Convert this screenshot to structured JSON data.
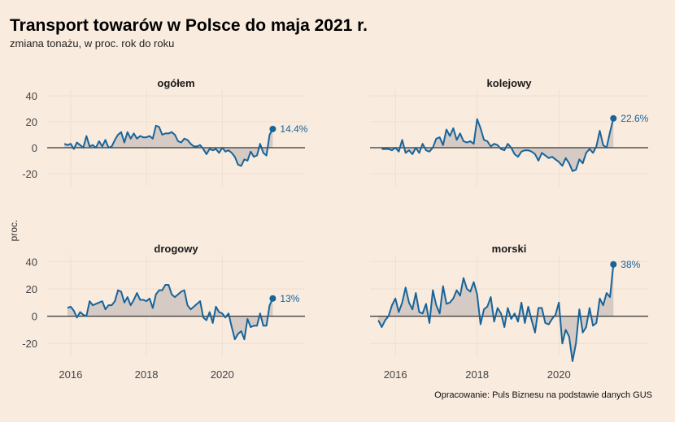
{
  "title": "Transport towarów w Polsce do maja 2021 r.",
  "subtitle": "zmiana tonażu, w proc. rok do roku",
  "caption": "Opracowanie: Puls Biznesu na podstawie danych GUS",
  "colors": {
    "background": "#f9ebde",
    "line": "#17649b",
    "area": "#d5cbc4",
    "zero_line": "#333333",
    "grid": "#f0dfd0"
  },
  "chart_data": {
    "type": "line",
    "ylabel": "proc.",
    "ylim": [
      -30,
      45
    ],
    "yticks": [
      -20,
      0,
      20,
      40
    ],
    "xticks": [
      "2016",
      "2018",
      "2020"
    ],
    "x_start": "2015-07",
    "x_end": "2021-05",
    "series": [
      {
        "name": "ogółem",
        "end_label": "14.4%",
        "values": [
          3,
          2,
          3,
          -1,
          4,
          2,
          0,
          9,
          1,
          2,
          0,
          5,
          1,
          6,
          0,
          1,
          6,
          10,
          12,
          4,
          12,
          7,
          11,
          7,
          9,
          8,
          8,
          9,
          7,
          17,
          16,
          10,
          11,
          11,
          12,
          10,
          5,
          4,
          7,
          6,
          3,
          1,
          1,
          2,
          -1,
          -5,
          -1,
          -2,
          -1,
          -4,
          0,
          -3,
          -2,
          -4,
          -7,
          -13,
          -14,
          -9,
          -10,
          -3,
          -7,
          -6,
          3,
          -4,
          -6,
          10,
          14.4
        ]
      },
      {
        "name": "kolejowy",
        "end_label": "22.6%",
        "values": [
          -1,
          -1,
          -1,
          -2,
          0,
          -3,
          6,
          -4,
          -2,
          -5,
          0,
          -4,
          3,
          -2,
          -3,
          0,
          7,
          8,
          2,
          14,
          9,
          15,
          6,
          11,
          5,
          4,
          5,
          3,
          22,
          15,
          6,
          5,
          1,
          3,
          2,
          -1,
          -2,
          3,
          0,
          -5,
          -7,
          -3,
          -2,
          -2,
          -3,
          -5,
          -10,
          -4,
          -6,
          -8,
          -7,
          -9,
          -11,
          -14,
          -8,
          -12,
          -18,
          -17,
          -9,
          -12,
          -4,
          -1,
          -4,
          1,
          13,
          2,
          0,
          12,
          22.6
        ]
      },
      {
        "name": "drogowy",
        "end_label": "13%",
        "values": [
          6,
          7,
          4,
          -1,
          3,
          1,
          0,
          11,
          8,
          9,
          10,
          11,
          5,
          8,
          8,
          11,
          19,
          18,
          10,
          14,
          8,
          12,
          17,
          12,
          12,
          11,
          13,
          6,
          16,
          19,
          19,
          23,
          23,
          16,
          14,
          16,
          18,
          19,
          8,
          5,
          7,
          9,
          11,
          -1,
          -3,
          3,
          -5,
          7,
          3,
          2,
          -1,
          2,
          -8,
          -17,
          -13,
          -11,
          -17,
          -2,
          -8,
          -7,
          -7,
          2,
          -7,
          -7,
          8,
          13
        ]
      },
      {
        "name": "morski",
        "end_label": "38%",
        "values": [
          -3,
          -8,
          -3,
          0,
          8,
          13,
          3,
          10,
          21,
          10,
          5,
          17,
          3,
          2,
          9,
          -5,
          19,
          8,
          2,
          22,
          9,
          10,
          13,
          19,
          15,
          28,
          20,
          18,
          25,
          16,
          -6,
          5,
          7,
          14,
          -4,
          6,
          2,
          -8,
          6,
          -2,
          2,
          -4,
          10,
          -5,
          7,
          -3,
          -12,
          6,
          6,
          -5,
          -6,
          -2,
          1,
          10,
          -20,
          -10,
          -15,
          -33,
          -20,
          5,
          -12,
          -8,
          6,
          -7,
          -5,
          13,
          8,
          17,
          14,
          38
        ]
      }
    ]
  }
}
